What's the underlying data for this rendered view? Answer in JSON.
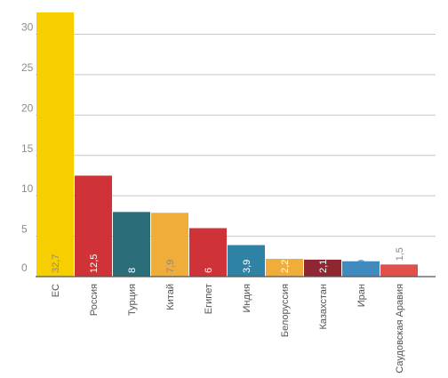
{
  "chart_data": {
    "type": "bar",
    "categories": [
      "ЕС",
      "Россия",
      "Турция",
      "Китай",
      "Египет",
      "Индия",
      "Белоруссия",
      "Казахстан",
      "Иран",
      "Саудовская Аравия"
    ],
    "values": [
      32.7,
      12.5,
      8,
      7.9,
      6,
      3.9,
      2.2,
      2.1,
      1.9,
      1.5
    ],
    "value_labels": [
      "32,7",
      "12,5",
      "8",
      "7,9",
      "6",
      "3,9",
      "2,2",
      "2,1",
      "1,9",
      "1,5"
    ],
    "colors": [
      "#f7cf00",
      "#d03337",
      "#2b6e7a",
      "#f0ad39",
      "#d03337",
      "#2e82a3",
      "#f0ad39",
      "#8e2732",
      "#3f8bc0",
      "#e1504a"
    ],
    "value_label_colors": [
      "#8a8a8a",
      "#ffffff",
      "#ffffff",
      "#8a8a8a",
      "#ffffff",
      "#ffffff",
      "#ffffff",
      "#ffffff",
      "#3f8bc0",
      "#8a8a8a"
    ],
    "value_label_outside": [
      false,
      false,
      false,
      false,
      false,
      false,
      false,
      false,
      false,
      true
    ],
    "yticks": [
      0,
      5,
      10,
      15,
      20,
      25,
      30
    ],
    "ylim": [
      0,
      32.7
    ],
    "title": "",
    "xlabel": "",
    "ylabel": "",
    "grid": true,
    "legend": "none"
  }
}
